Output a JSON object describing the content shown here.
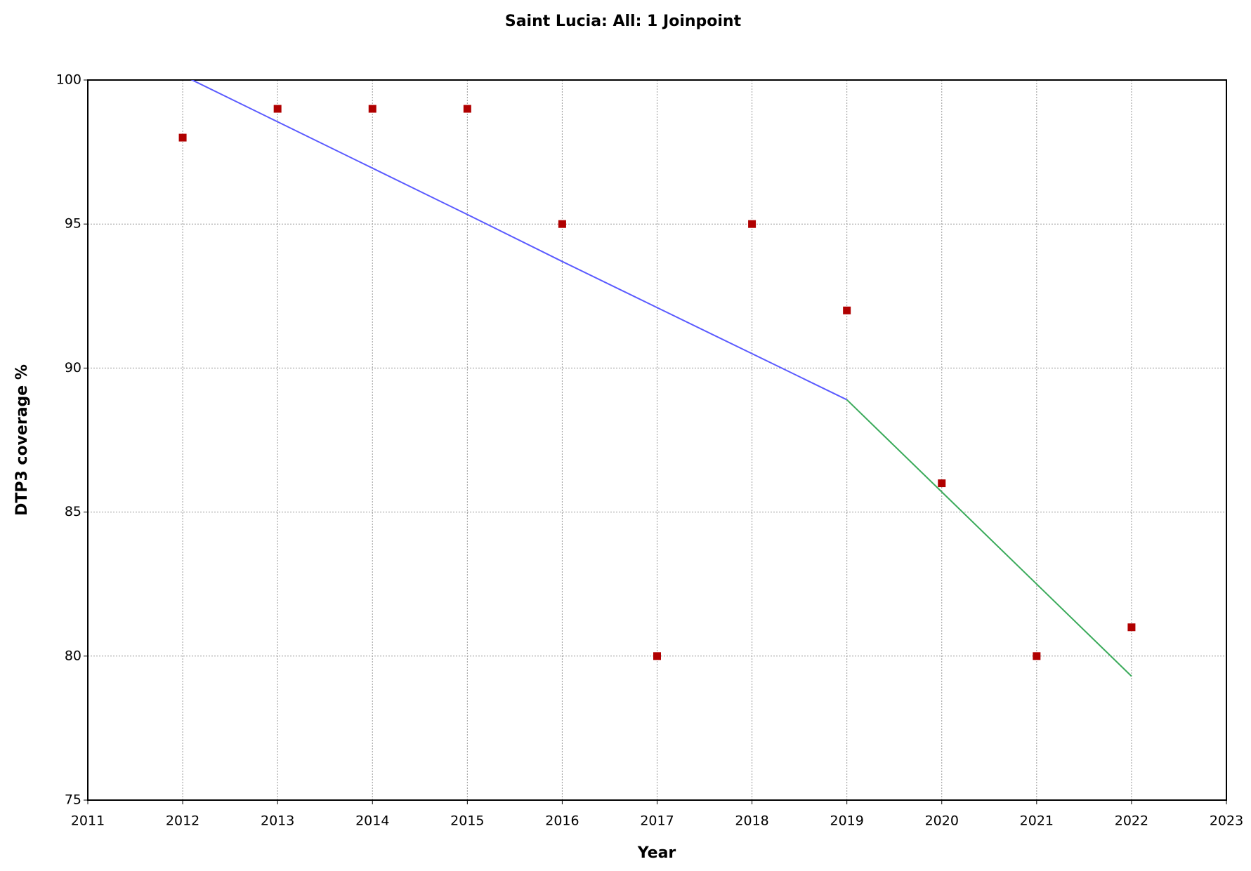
{
  "chart_data": {
    "type": "line",
    "title": "Saint Lucia: All: 1 Joinpoint",
    "x_label": "Year",
    "y_label": "DTP3 coverage %",
    "x": [
      2012,
      2013,
      2014,
      2015,
      2016,
      2017,
      2018,
      2019,
      2020,
      2021,
      2022
    ],
    "series": [
      {
        "type": "scatter",
        "color": "#b00000",
        "values": [
          98,
          99,
          99,
          99,
          95,
          80,
          95,
          92,
          86,
          80,
          81
        ]
      },
      {
        "type": "line",
        "color": "#5a5aff",
        "values": [
          100.16,
          98.55,
          96.94,
          95.33,
          93.7,
          92.1,
          90.5,
          88.9,
          null,
          null,
          null
        ]
      },
      {
        "type": "line",
        "color": "#3aaa5a",
        "values": [
          null,
          null,
          null,
          null,
          null,
          null,
          null,
          88.9,
          85.7,
          82.5,
          79.3
        ]
      }
    ],
    "xlim": [
      2011,
      2023
    ],
    "xticks": [
      2011,
      2012,
      2013,
      2014,
      2015,
      2016,
      2017,
      2018,
      2019,
      2020,
      2021,
      2022,
      2023
    ],
    "ylim": [
      75,
      100
    ],
    "yticks": [
      75,
      80,
      85,
      90,
      95,
      100
    ],
    "grid": true
  }
}
